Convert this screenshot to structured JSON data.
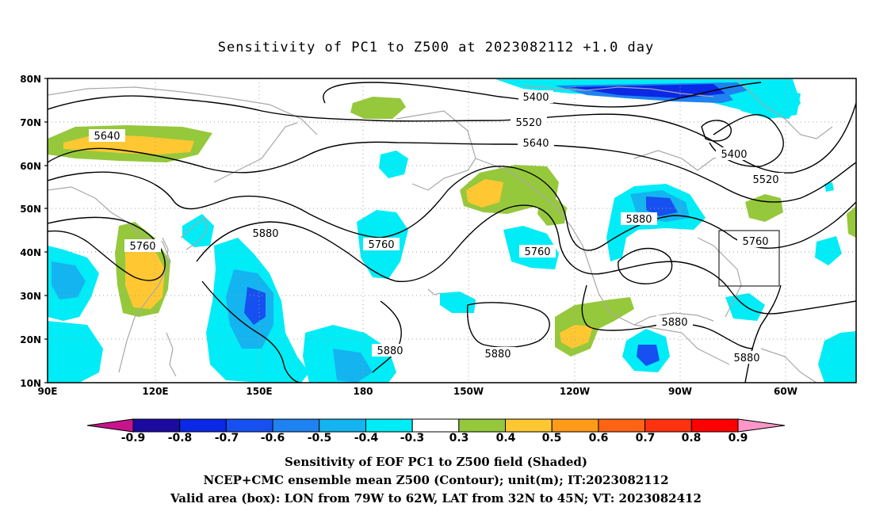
{
  "title": "Sensitivity of PC1 to Z500 at 2023082112 +1.0 day",
  "lat_labels": [
    "80N",
    "70N",
    "60N",
    "50N",
    "40N",
    "30N",
    "20N",
    "10N"
  ],
  "lon_labels": [
    "90E",
    "120E",
    "150E",
    "180",
    "150W",
    "120W",
    "90W",
    "60W"
  ],
  "contour_labels": [
    "5400",
    "5520",
    "5640",
    "5640",
    "5760",
    "5760",
    "5760",
    "5760",
    "5880",
    "5880",
    "5880",
    "5880",
    "5880",
    "5880",
    "5400",
    "5520"
  ],
  "colorbar": {
    "labels": [
      "-0.9",
      "-0.8",
      "-0.7",
      "-0.6",
      "-0.5",
      "-0.4",
      "-0.3",
      "0.3",
      "0.4",
      "0.5",
      "0.6",
      "0.7",
      "0.8",
      "0.9"
    ],
    "colors": [
      "#1a0aa0",
      "#0a28e6",
      "#1650f0",
      "#1e82f0",
      "#14b4f0",
      "#00ecf6",
      "#ffffff",
      "#96c83c",
      "#ffc832",
      "#ff9b19",
      "#ff6414",
      "#ff320f",
      "#ff0000"
    ],
    "left_arrow_color": "#c8148c",
    "right_arrow_color": "#ff96c8"
  },
  "footer": {
    "line1": "Sensitivity of EOF PC1 to Z500 field (Shaded)",
    "line2": "NCEP+CMC ensemble mean Z500 (Contour); unit(m); IT:2023082112",
    "line3": "Valid area (box): LON from 79W to 62W, LAT from 32N to 45N; VT: 2023082412"
  }
}
